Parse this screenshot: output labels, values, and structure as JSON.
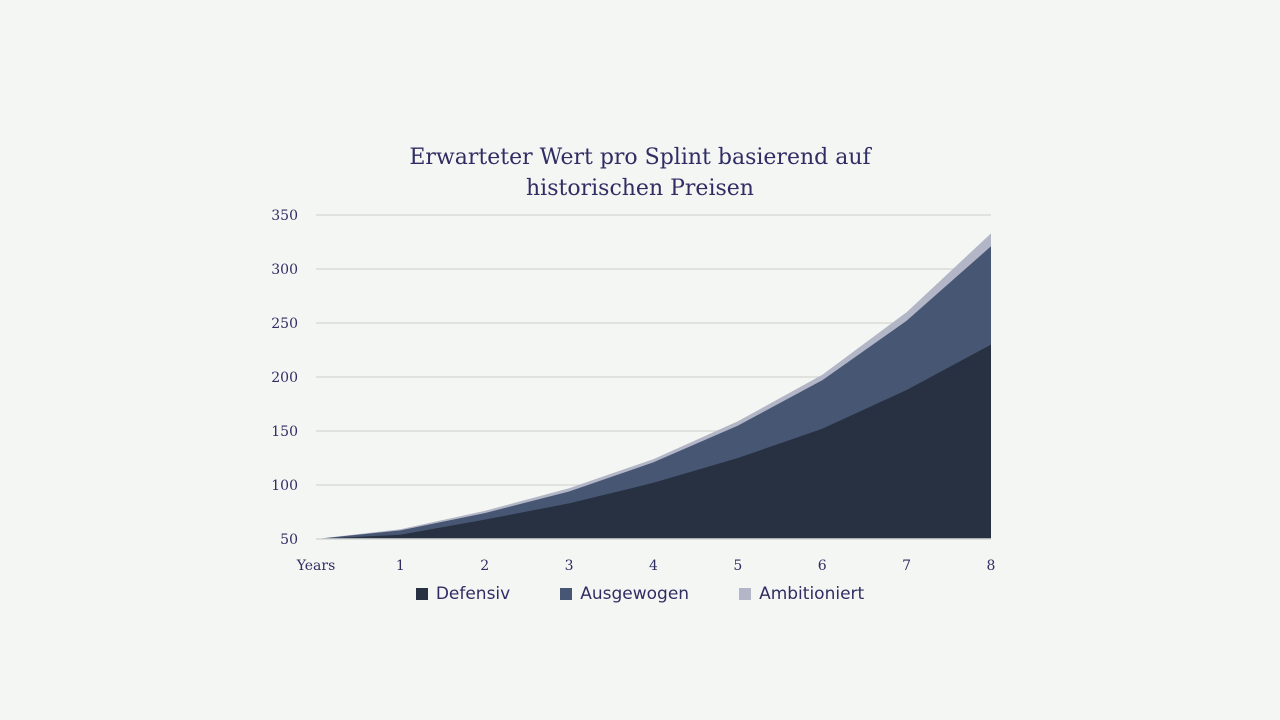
{
  "chart_data": {
    "type": "area",
    "stacked": true,
    "title_line1": "Erwarteter Wert pro Splint basierend auf",
    "title_line2": "historischen Preisen",
    "categories": [
      "Years",
      "1",
      "2",
      "3",
      "4",
      "5",
      "6",
      "7",
      "8"
    ],
    "y_ticks": [
      50,
      100,
      150,
      200,
      250,
      300,
      350
    ],
    "ylim": [
      50,
      350
    ],
    "grid": true,
    "legend_position": "bottom",
    "series": [
      {
        "name": "Defensiv",
        "color": "#283142",
        "values": [
          50,
          54,
          68,
          83,
          102,
          125,
          152,
          188,
          230
        ]
      },
      {
        "name": "Ausgewogen",
        "color": "#475673",
        "values": [
          50,
          58,
          74,
          94,
          121,
          155,
          197,
          252,
          321
        ]
      },
      {
        "name": "Ambitioniert",
        "color": "#b2b6c6",
        "values": [
          50,
          59,
          76,
          97,
          124,
          159,
          202,
          260,
          333
        ]
      }
    ]
  }
}
